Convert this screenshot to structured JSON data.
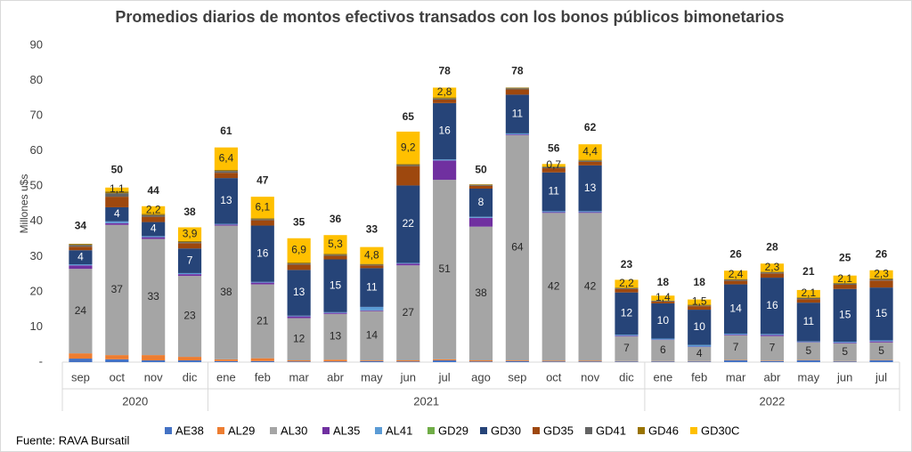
{
  "chart_data": {
    "type": "stacked_bar",
    "title": "Promedios diarios  de montos efectivos transados con los  bonos públicos bimonetarios",
    "y_label": "Millones u$s",
    "source": "Fuente: RAVA Bursatil",
    "groups": [
      {
        "name": "2020",
        "categories": [
          "sep",
          "oct",
          "nov",
          "dic"
        ]
      },
      {
        "name": "2021",
        "categories": [
          "ene",
          "feb",
          "mar",
          "abr",
          "may",
          "jun",
          "jul",
          "ago",
          "sep",
          "oct",
          "nov",
          "dic"
        ]
      },
      {
        "name": "2022",
        "categories": [
          "ene",
          "feb",
          "mar",
          "abr",
          "may",
          "jun",
          "jul"
        ]
      }
    ],
    "ylim": [
      0,
      90
    ],
    "yticks": [
      {
        "value": 0,
        "label": "-"
      },
      10,
      20,
      30,
      40,
      50,
      60,
      70,
      80,
      90
    ],
    "totals": [
      34,
      50,
      44,
      38,
      61,
      47,
      35,
      36,
      33,
      65,
      78,
      50,
      78,
      56,
      62,
      23,
      18,
      18,
      26,
      28,
      21,
      25,
      26
    ],
    "series": [
      {
        "name": "AE38",
        "color": "#4472c4",
        "values": [
          1,
          0.8,
          0.5,
          0.5,
          0.3,
          0.3,
          0.2,
          0.2,
          0.3,
          0.2,
          0.5,
          0.2,
          0.3,
          0.2,
          0.2,
          0.2,
          0.2,
          0.2,
          0.5,
          0.3,
          0.5,
          0.2,
          0.5
        ]
      },
      {
        "name": "AL29",
        "color": "#ed7d31",
        "values": [
          1.5,
          1.2,
          1.5,
          1,
          0.5,
          0.8,
          0.3,
          0.5,
          0.2,
          0.3,
          0.3,
          0.3,
          0.2,
          0.2,
          0.2,
          0.1,
          0.1,
          0.1,
          0.1,
          0.1,
          0.1,
          0.1,
          0.1
        ]
      },
      {
        "name": "AL30",
        "color": "#a5a5a5",
        "labels": true,
        "values": [
          24,
          37,
          33,
          23,
          38,
          21,
          12,
          13,
          14,
          27,
          51,
          38,
          64,
          42,
          42,
          7,
          6,
          4,
          7,
          7,
          5,
          5,
          5
        ]
      },
      {
        "name": "AL35",
        "color": "#7030a0",
        "values": [
          1,
          0.5,
          0.5,
          0.5,
          0.3,
          0.5,
          0.5,
          0.3,
          0.2,
          0.5,
          5.5,
          2.5,
          0.2,
          0.2,
          0.2,
          0.2,
          0.1,
          0.1,
          0.2,
          0.3,
          0.1,
          0.2,
          0.3
        ]
      },
      {
        "name": "AL41",
        "color": "#5b9bd5",
        "values": [
          0.3,
          0.5,
          0.3,
          0.3,
          0.2,
          0.2,
          0.2,
          0.2,
          1,
          0.2,
          0.3,
          0.3,
          0.3,
          0.3,
          0.3,
          0.3,
          0.3,
          0.5,
          0.3,
          0.3,
          0.2,
          0.3,
          0.3
        ]
      },
      {
        "name": "GD29",
        "color": "#70ad47",
        "values": [
          0,
          0,
          0,
          0,
          0,
          0,
          0,
          0,
          0,
          0,
          0,
          0,
          0,
          0,
          0,
          0,
          0,
          0,
          0,
          0,
          0,
          0,
          0
        ]
      },
      {
        "name": "GD30",
        "color": "#264478",
        "labels": true,
        "values": [
          4,
          4,
          4,
          7,
          13,
          16,
          13,
          15,
          11,
          22,
          16,
          8,
          11,
          11,
          13,
          12,
          10,
          10,
          14,
          16,
          11,
          15,
          15
        ]
      },
      {
        "name": "GD35",
        "color": "#9e480e",
        "values": [
          1,
          3,
          1.5,
          1.5,
          1.5,
          1.5,
          1.5,
          1,
          0.8,
          5.5,
          1,
          0.8,
          1.5,
          1.2,
          1,
          1,
          0.5,
          1,
          1,
          1.2,
          1,
          1.2,
          2
        ]
      },
      {
        "name": "GD41",
        "color": "#636363",
        "values": [
          0.5,
          1,
          0.5,
          0.3,
          0.5,
          0.3,
          0.3,
          0.3,
          0.2,
          0.3,
          0.3,
          0.2,
          0.3,
          0.3,
          0.3,
          0.2,
          0.2,
          0.2,
          0.3,
          0.3,
          0.3,
          0.3,
          0.3
        ]
      },
      {
        "name": "GD46",
        "color": "#997300",
        "values": [
          0.3,
          0.5,
          0.3,
          0.3,
          0.3,
          0.3,
          0.3,
          0.3,
          0.2,
          0.3,
          0.3,
          0.2,
          0.2,
          0.2,
          0.3,
          0.2,
          0.1,
          0.2,
          0.2,
          0.2,
          0.2,
          0.2,
          0.3
        ]
      },
      {
        "name": "GD30C",
        "color": "#ffc000",
        "labels": true,
        "values": [
          0,
          1.1,
          2.2,
          3.9,
          6.4,
          6.1,
          6.9,
          5.3,
          4.8,
          9.2,
          2.8,
          0,
          0,
          0.7,
          4.4,
          2.2,
          1.4,
          1.5,
          2.4,
          2.3,
          2.1,
          2.1,
          2.3
        ],
        "value_labels": [
          null,
          "1,1",
          "2,2",
          "3,9",
          "6,4",
          "6,1",
          "6,9",
          "5,3",
          "4,8",
          "9,2",
          "2,8",
          null,
          null,
          "0,7",
          "4,4",
          "2,2",
          "1,4",
          "1,5",
          "2,4",
          "2,3",
          "2,1",
          "2,1",
          "2,3"
        ]
      }
    ]
  }
}
